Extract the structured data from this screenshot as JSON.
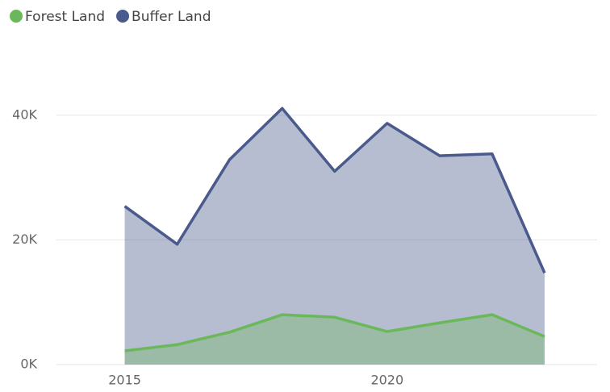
{
  "chart_data": {
    "type": "area",
    "x": [
      2015,
      2016,
      2017,
      2018,
      2019,
      2020,
      2021,
      2022,
      2023
    ],
    "series": [
      {
        "name": "Forest Land",
        "color": "#6ab85a",
        "values": [
          2200,
          3200,
          5200,
          8000,
          7600,
          5300,
          6700,
          8000,
          4500
        ]
      },
      {
        "name": "Buffer Land",
        "color": "#4a5a8c",
        "values": [
          25400,
          19300,
          32900,
          41100,
          31000,
          38700,
          33500,
          33800,
          14700
        ]
      }
    ],
    "xlim": [
      2013.7,
      2024
    ],
    "xticks": [
      2015,
      2020
    ],
    "ylim": [
      0,
      48000
    ],
    "yticks": [
      {
        "value": 0,
        "label": "0K"
      },
      {
        "value": 20000,
        "label": "20K"
      },
      {
        "value": 40000,
        "label": "40K"
      }
    ],
    "grid": true,
    "legend": "top-left"
  }
}
